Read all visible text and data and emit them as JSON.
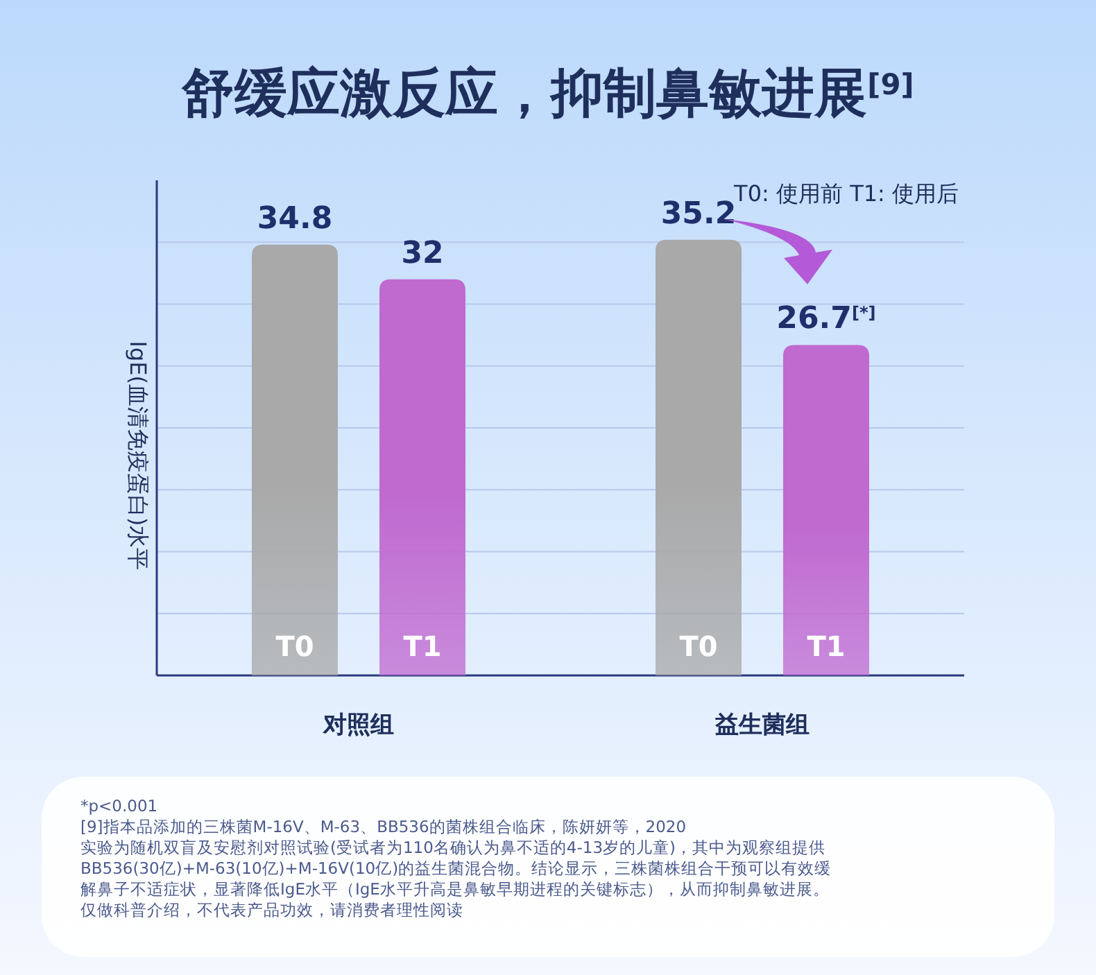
{
  "chart_data": {
    "type": "bar",
    "title": "舒缓应激反应，抑制鼻敏进展$^{[9]}$",
    "ylabel": "IgE(血清免疫蛋白)水平",
    "categories": [
      "对照组",
      "益生菌组"
    ],
    "series": [
      {
        "name": "T0",
        "color": "#a9a9a9",
        "values": [
          34.8,
          35.2
        ],
        "value_labels": [
          "34.8",
          "35.2"
        ]
      },
      {
        "name": "T1",
        "color": "#c06ad0",
        "values": [
          32,
          26.7
        ],
        "value_labels": [
          "32",
          "26.7$^{[*]}$"
        ]
      }
    ],
    "ylim": [
      0,
      40
    ],
    "yticks": [
      {
        "value": 5,
        "label": null
      },
      {
        "value": 10,
        "label": null
      },
      {
        "value": 15,
        "label": null
      },
      {
        "value": 20,
        "label": null
      },
      {
        "value": 25,
        "label": null
      },
      {
        "value": 30,
        "label": null
      },
      {
        "value": 35,
        "label": null
      }
    ],
    "tick_labels": "x",
    "grid": "y",
    "annotations": [
      "T0: 使用前   T1: 使用后",
      "*p<0.001",
      "[9]指本品添加的三株菌M-16V、M-63、BB536的菌株组合临床，陈妍妍等，2020",
      "实验为随机双盲及安慰剂对照试验(受试者为110名确认为鼻不适的4-13岁的儿童)，其中为观察组提供",
      "BB536(30亿)+M-63(10亿)+M-16V(10亿)的益生菌混合物。结论显示，三株菌株组合干预可以有效缓",
      "解鼻子不适症状，显著降低IgE水平（IgE水平升高是鼻敏早期进程的关键标志），从而抑制鼻敏进展。",
      "仅做科普介绍，不代表产品功效，请消费者理性阅读"
    ]
  }
}
